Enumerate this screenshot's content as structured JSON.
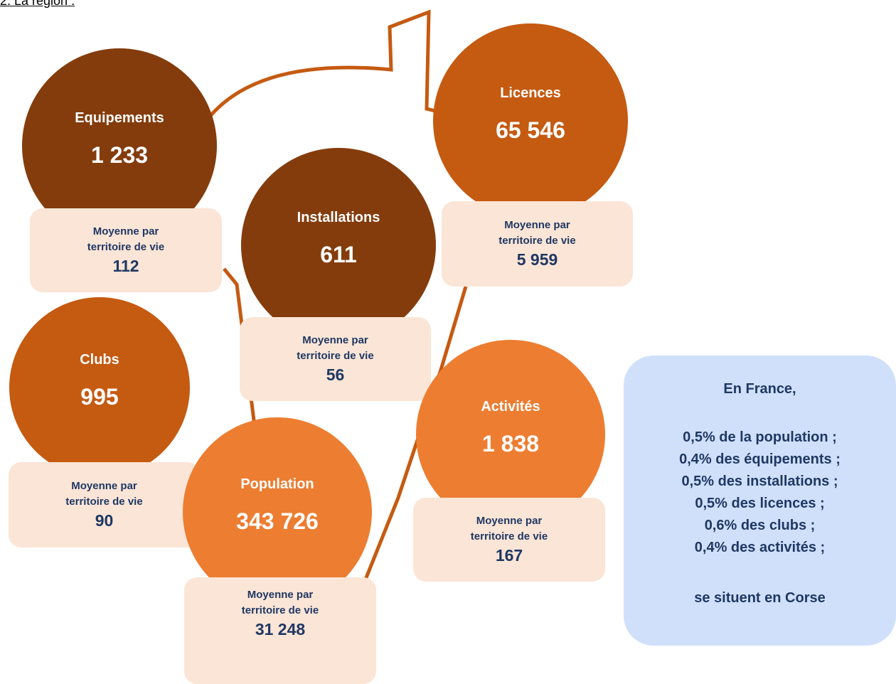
{
  "heading": "2.  La région :",
  "items": [
    {
      "label": "Equipements",
      "value": "1 233",
      "average_label": "Moyenne par territoire de vie",
      "average": "112"
    },
    {
      "label": "Licences",
      "value": "65 546",
      "average_label": "Moyenne par territoire de vie",
      "average": "5 959"
    },
    {
      "label": "Installations",
      "value": "611",
      "average_label": "Moyenne par territoire de vie",
      "average": "56"
    },
    {
      "label": "Clubs",
      "value": "995",
      "average_label": "Moyenne par territoire de vie",
      "average": "90"
    },
    {
      "label": "Population",
      "value": "343 726",
      "average_label": "Moyenne par territoire de vie",
      "average": "31 248"
    },
    {
      "label": "Activités",
      "value": "1 838",
      "average_label": "Moyenne par territoire de vie",
      "average": "167"
    }
  ],
  "france": {
    "title": "En France,",
    "lines": [
      "0,5% de la population ;",
      "0,4% des équipements ;",
      "0,5% des installations ;",
      "0,5% des licences ;",
      "0,6% des clubs ;",
      "0,4% des activités ;"
    ],
    "footer": "se situent en Corse"
  }
}
